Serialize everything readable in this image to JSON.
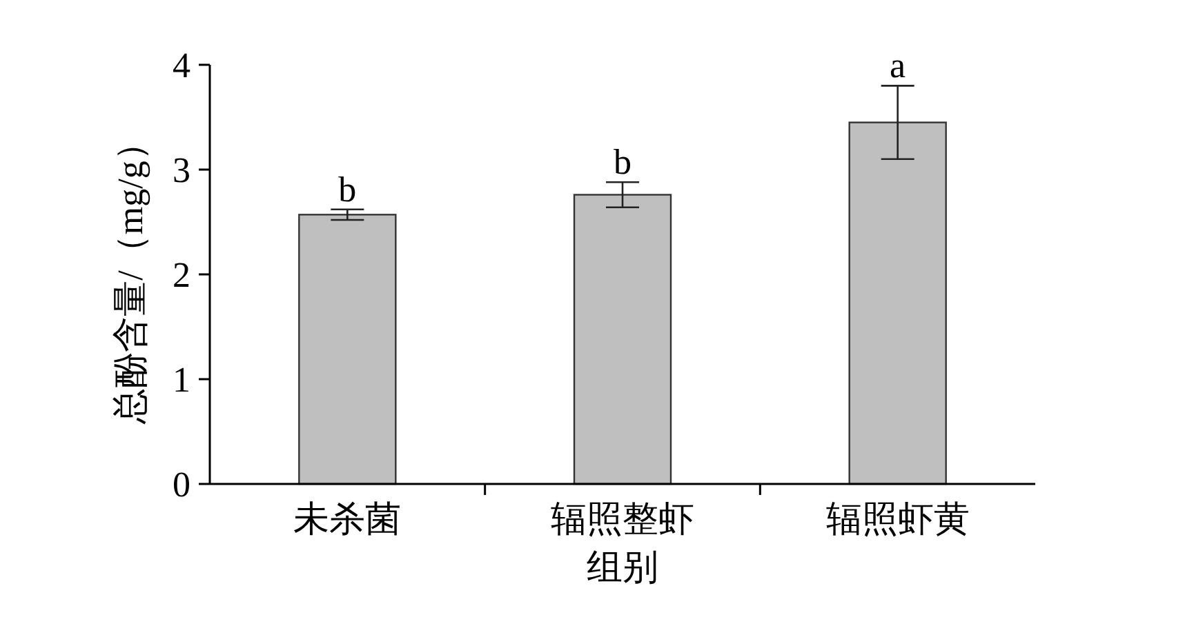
{
  "chart_data": {
    "type": "bar",
    "xlabel": "组别",
    "ylabel": "总酚含量/（mg/g）",
    "categories": [
      "未杀菌",
      "辐照整虾",
      "辐照虾黄"
    ],
    "values": [
      2.57,
      2.76,
      3.45
    ],
    "errors": [
      0.05,
      0.12,
      0.35
    ],
    "color": "#bfbfbf",
    "ylim": [
      0,
      4
    ],
    "yticks": [
      0,
      1,
      2,
      3,
      4
    ],
    "annotations": [
      {
        "text": "b",
        "x": "未杀菌",
        "y": 2.62
      },
      {
        "text": "b",
        "x": "辐照整虾",
        "y": 2.88
      },
      {
        "text": "a",
        "x": "辐照虾黄",
        "y": 3.8
      }
    ],
    "grid": false
  }
}
